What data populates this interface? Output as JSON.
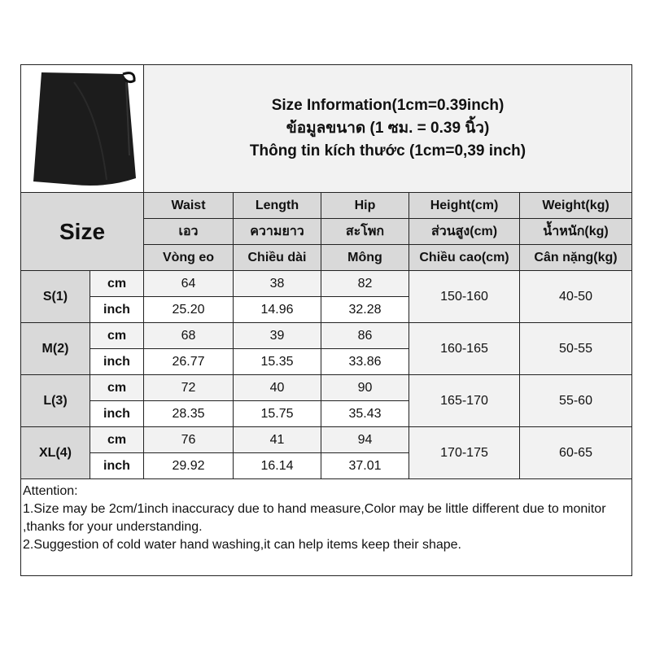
{
  "title_lines": [
    "Size Information(1cm=0.39inch)",
    "ข้อมูลขนาด (1 ซม. = 0.39 นิ้ว)",
    "Thông tin kích thước (1cm=0,39 inch)"
  ],
  "product_image": "black-wrap-skirt-photo",
  "size_header": "Size",
  "columns": [
    {
      "en": "Waist",
      "th": "เอว",
      "vi": "Vòng eo"
    },
    {
      "en": "Length",
      "th": "ความยาว",
      "vi": "Chiều dài"
    },
    {
      "en": "Hip",
      "th": "สะโพก",
      "vi": "Mông"
    },
    {
      "en": "Height(cm)",
      "th": "ส่วนสูง(cm)",
      "vi": "Chiều cao(cm)"
    },
    {
      "en": "Weight(kg)",
      "th": "น้ำหนัก(kg)",
      "vi": "Cân nặng(kg)"
    }
  ],
  "unit_cm": "cm",
  "unit_inch": "inch",
  "rows": [
    {
      "size": "S(1)",
      "cm": [
        "64",
        "38",
        "82"
      ],
      "inch": [
        "25.20",
        "14.96",
        "32.28"
      ],
      "height": "150-160",
      "weight": "40-50"
    },
    {
      "size": "M(2)",
      "cm": [
        "68",
        "39",
        "86"
      ],
      "inch": [
        "26.77",
        "15.35",
        "33.86"
      ],
      "height": "160-165",
      "weight": "50-55"
    },
    {
      "size": "L(3)",
      "cm": [
        "72",
        "40",
        "90"
      ],
      "inch": [
        "28.35",
        "15.75",
        "35.43"
      ],
      "height": "165-170",
      "weight": "55-60"
    },
    {
      "size": "XL(4)",
      "cm": [
        "76",
        "41",
        "94"
      ],
      "inch": [
        "29.92",
        "16.14",
        "37.01"
      ],
      "height": "170-175",
      "weight": "60-65"
    }
  ],
  "attention": {
    "heading": "Attention:",
    "line1": "1.Size may be 2cm/1inch inaccuracy due to hand measure,Color may be little different due to monitor ,thanks for your understanding.",
    "line2": "2.Suggestion of cold water hand washing,it can help items keep their shape."
  }
}
